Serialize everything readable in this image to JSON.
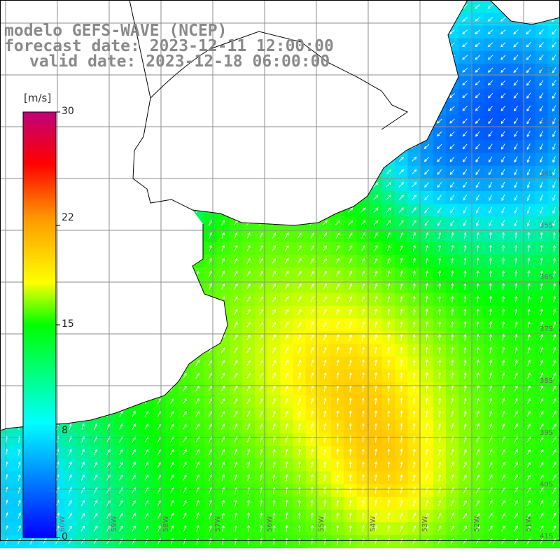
{
  "title": {
    "line1": "modelo GEFS-WAVE (NCEP)",
    "line2": "forecast date: 2023-12-11 12:00:00",
    "line3": "valid date: 2023-12-18 06:00:00"
  },
  "colorbar": {
    "unit": "[m/s]",
    "min": 0,
    "max": 30,
    "ticks": [
      "30",
      "22",
      "15",
      "8",
      "0"
    ],
    "tick_values": [
      30,
      22,
      15,
      8,
      0
    ],
    "colors": [
      "#0000ff",
      "#00e8ff",
      "#00ff00",
      "#ffff00",
      "#ff0000",
      "#c0007a"
    ]
  },
  "map": {
    "variable": "wind speed",
    "lon_range": [
      -61,
      -50
    ],
    "lat_range": [
      -41,
      -31
    ],
    "lat_labels": [
      "32S",
      "33S",
      "34S",
      "35S",
      "36S",
      "37S",
      "38S",
      "39S",
      "40S",
      "41S"
    ],
    "lon_labels": [
      "60W",
      "59W",
      "58W",
      "57W",
      "56W",
      "55W",
      "54W",
      "53W",
      "52W",
      "51W"
    ],
    "land_color": "#ffffff",
    "grid_color": "#8c8c8c"
  }
}
